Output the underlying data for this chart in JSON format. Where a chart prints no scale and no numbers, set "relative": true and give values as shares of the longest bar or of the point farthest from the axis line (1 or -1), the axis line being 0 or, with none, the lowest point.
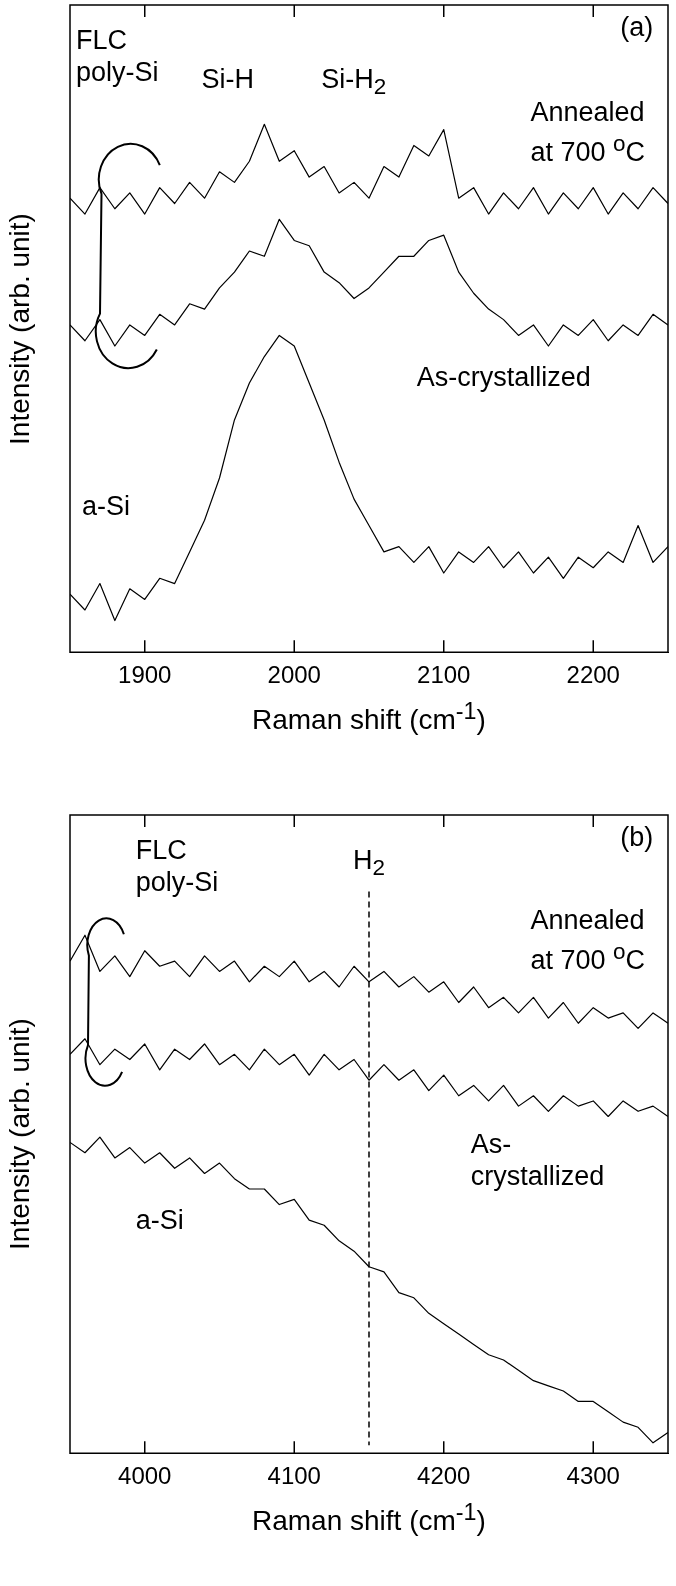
{
  "chart_data": [
    {
      "type": "line",
      "xlabel": "Raman shift (cm$^{-1}$)",
      "ylabel": "Intensity (arb. unit)",
      "relative": true,
      "xlim": [
        1850,
        2250
      ],
      "xticks": [
        1900,
        2000,
        2100,
        2200
      ],
      "grid": false,
      "legend": false,
      "marker": "none",
      "line_style": "solid",
      "tick_labels": "x",
      "x": [
        1850,
        1860,
        1870,
        1880,
        1890,
        1900,
        1910,
        1920,
        1930,
        1940,
        1950,
        1960,
        1970,
        1980,
        1990,
        2000,
        2010,
        2020,
        2030,
        2040,
        2050,
        2060,
        2070,
        2080,
        2090,
        2100,
        2110,
        2120,
        2130,
        2140,
        2150,
        2160,
        2170,
        2180,
        2190,
        2200,
        2210,
        2220,
        2230,
        2240,
        2250
      ],
      "series": [
        {
          "name": "Annealed at 700 $^{o}$C",
          "color": "#000000",
          "values": [
            0.86,
            0.83,
            0.88,
            0.84,
            0.87,
            0.83,
            0.88,
            0.85,
            0.89,
            0.86,
            0.91,
            0.89,
            0.93,
            1,
            0.93,
            0.95,
            0.9,
            0.92,
            0.87,
            0.89,
            0.86,
            0.92,
            0.9,
            0.96,
            0.94,
            0.99,
            0.86,
            0.88,
            0.83,
            0.87,
            0.84,
            0.88,
            0.83,
            0.87,
            0.84,
            0.88,
            0.83,
            0.87,
            0.84,
            0.88,
            0.85
          ]
        },
        {
          "name": "As-crystallized",
          "color": "#000000",
          "values": [
            0.62,
            0.59,
            0.63,
            0.58,
            0.62,
            0.6,
            0.64,
            0.62,
            0.66,
            0.65,
            0.69,
            0.72,
            0.76,
            0.75,
            0.82,
            0.78,
            0.77,
            0.72,
            0.7,
            0.67,
            0.69,
            0.72,
            0.75,
            0.75,
            0.78,
            0.79,
            0.72,
            0.68,
            0.65,
            0.63,
            0.6,
            0.62,
            0.58,
            0.62,
            0.6,
            0.63,
            0.59,
            0.62,
            0.6,
            0.64,
            0.62
          ]
        },
        {
          "name": "a-Si",
          "color": "#000000",
          "values": [
            0.11,
            0.08,
            0.13,
            0.06,
            0.12,
            0.1,
            0.14,
            0.13,
            0.19,
            0.25,
            0.33,
            0.44,
            0.51,
            0.56,
            0.6,
            0.58,
            0.51,
            0.44,
            0.36,
            0.29,
            0.24,
            0.19,
            0.2,
            0.17,
            0.2,
            0.15,
            0.19,
            0.17,
            0.2,
            0.16,
            0.19,
            0.15,
            0.18,
            0.14,
            0.18,
            0.16,
            0.19,
            0.17,
            0.24,
            0.17,
            0.2
          ]
        }
      ],
      "annotations": [
        "(a)",
        "FLC poly-Si",
        "Si-H",
        "Si-H$_{2}$"
      ]
    },
    {
      "type": "line",
      "xlabel": "Raman shift (cm$^{-1}$)",
      "ylabel": "Intensity (arb. unit)",
      "relative": true,
      "xlim": [
        3950,
        4350
      ],
      "xticks": [
        4000,
        4100,
        4200,
        4300
      ],
      "grid": false,
      "legend": false,
      "marker": "none",
      "line_style": "solid",
      "tick_labels": "x",
      "x": [
        3950,
        3960,
        3970,
        3980,
        3990,
        4000,
        4010,
        4020,
        4030,
        4040,
        4050,
        4060,
        4070,
        4080,
        4090,
        4100,
        4110,
        4120,
        4130,
        4140,
        4150,
        4160,
        4170,
        4180,
        4190,
        4200,
        4210,
        4220,
        4230,
        4240,
        4250,
        4260,
        4270,
        4280,
        4290,
        4300,
        4310,
        4320,
        4330,
        4340,
        4350
      ],
      "series": [
        {
          "name": "Annealed at 700 $^{o}$C",
          "color": "#000000",
          "values": [
            0.95,
            1.0,
            0.93,
            0.96,
            0.92,
            0.97,
            0.94,
            0.95,
            0.92,
            0.96,
            0.93,
            0.95,
            0.91,
            0.94,
            0.92,
            0.95,
            0.91,
            0.93,
            0.9,
            0.94,
            0.91,
            0.93,
            0.9,
            0.92,
            0.89,
            0.91,
            0.87,
            0.9,
            0.86,
            0.88,
            0.85,
            0.88,
            0.84,
            0.87,
            0.83,
            0.86,
            0.84,
            0.85,
            0.82,
            0.85,
            0.83
          ]
        },
        {
          "name": "As-crystallized",
          "color": "#000000",
          "values": [
            0.77,
            0.8,
            0.75,
            0.78,
            0.76,
            0.79,
            0.74,
            0.78,
            0.76,
            0.79,
            0.75,
            0.77,
            0.74,
            0.78,
            0.75,
            0.77,
            0.73,
            0.77,
            0.74,
            0.76,
            0.72,
            0.75,
            0.72,
            0.74,
            0.7,
            0.73,
            0.69,
            0.71,
            0.68,
            0.71,
            0.67,
            0.69,
            0.66,
            0.69,
            0.67,
            0.68,
            0.65,
            0.68,
            0.66,
            0.67,
            0.65
          ]
        },
        {
          "name": "a-Si",
          "color": "#000000",
          "values": [
            0.6,
            0.58,
            0.61,
            0.57,
            0.59,
            0.56,
            0.58,
            0.55,
            0.57,
            0.54,
            0.56,
            0.53,
            0.51,
            0.51,
            0.48,
            0.49,
            0.45,
            0.44,
            0.41,
            0.39,
            0.36,
            0.35,
            0.31,
            0.3,
            0.27,
            0.25,
            0.23,
            0.21,
            0.19,
            0.18,
            0.16,
            0.14,
            0.13,
            0.12,
            0.1,
            0.1,
            0.08,
            0.06,
            0.05,
            0.02,
            0.04
          ]
        }
      ],
      "ref_lines": [
        {
          "axis": "x",
          "value": 4150,
          "label": "H$_{2}$",
          "color": "#000000",
          "line_style": "dashed"
        }
      ],
      "annotations": [
        "(b)",
        "FLC poly-Si"
      ]
    }
  ]
}
